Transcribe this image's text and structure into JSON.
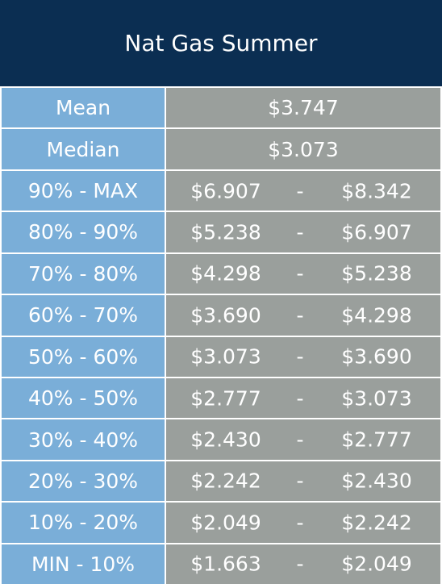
{
  "header": {
    "title": "Nat Gas Summer"
  },
  "stats": [
    [
      "Mean",
      "$3.747"
    ],
    [
      "Median",
      "$3.073"
    ]
  ],
  "ranges": [
    [
      "90% - MAX",
      "$6.907",
      "-",
      "$8.342"
    ],
    [
      "80% - 90%",
      "$5.238",
      "-",
      "$6.907"
    ],
    [
      "70% - 80%",
      "$4.298",
      "-",
      "$5.238"
    ],
    [
      "60% - 70%",
      "$3.690",
      "-",
      "$4.298"
    ],
    [
      "50% - 60%",
      "$3.073",
      "-",
      "$3.690"
    ],
    [
      "40% - 50%",
      "$2.777",
      "-",
      "$3.073"
    ],
    [
      "30% - 40%",
      "$2.430",
      "-",
      "$2.777"
    ],
    [
      "20% - 30%",
      "$2.242",
      "-",
      "$2.430"
    ],
    [
      "10% - 20%",
      "$2.049",
      "-",
      "$2.242"
    ],
    [
      "MIN - 10%",
      "$1.663",
      "-",
      "$2.049"
    ]
  ]
}
